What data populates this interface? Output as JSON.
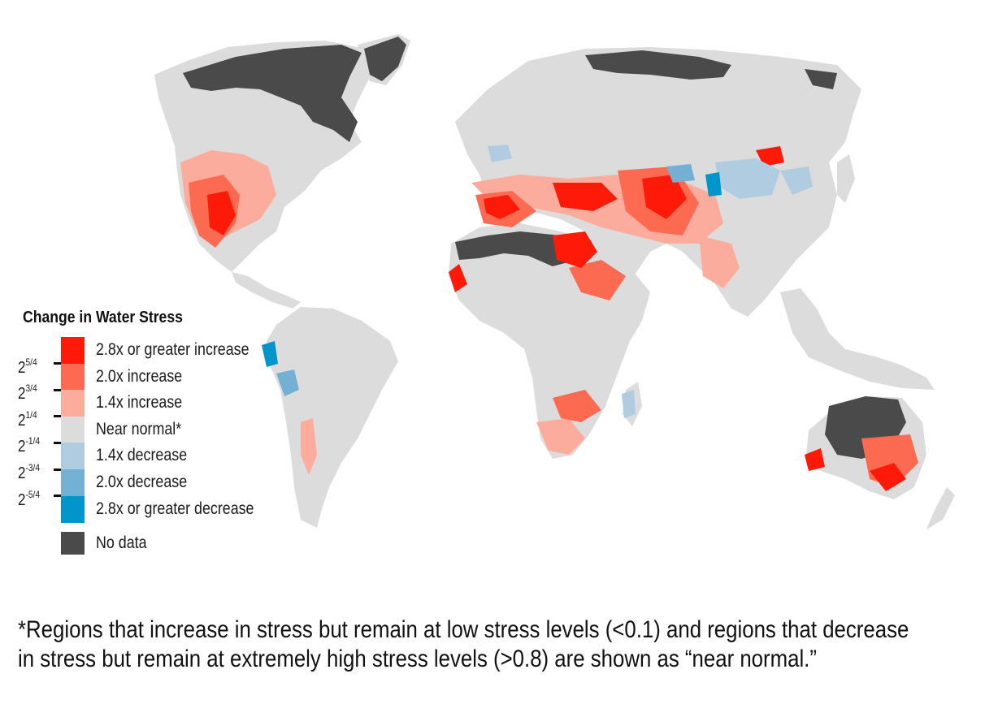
{
  "legend": {
    "title": "Change in Water Stress",
    "items": [
      {
        "label": "2.8x or greater increase",
        "color": "#fe1a09"
      },
      {
        "label": "2.0x increase",
        "color": "#fd6a52"
      },
      {
        "label": "1.4x increase",
        "color": "#fcac9c"
      },
      {
        "label": "Near normal*",
        "color": "#dcdcdc"
      },
      {
        "label": "1.4x decrease",
        "color": "#b0cce1"
      },
      {
        "label": "2.0x decrease",
        "color": "#74afd4"
      },
      {
        "label": "2.8x or greater decrease",
        "color": "#0096cc"
      }
    ],
    "no_data": {
      "label": "No data",
      "color": "#4a4a4a"
    },
    "ticks": [
      {
        "base": "2",
        "exp": "5/4"
      },
      {
        "base": "2",
        "exp": "3/4"
      },
      {
        "base": "2",
        "exp": "1/4"
      },
      {
        "base": "2",
        "exp": "-1/4"
      },
      {
        "base": "2",
        "exp": "-3/4"
      },
      {
        "base": "2",
        "exp": "-5/4"
      }
    ]
  },
  "footnote": {
    "line1": "*Regions that increase in stress but remain at low stress levels (<0.1) and regions that decrease",
    "line2": "in stress but remain at extremely high stress levels (>0.8) are shown as “near normal.”"
  },
  "colors": {
    "land": "#dcdcdc",
    "no_data": "#4a4a4a",
    "strong_increase": "#fe1a09",
    "increase": "#fd6a52",
    "mild_increase": "#fcac9c",
    "mild_decrease": "#b0cce1",
    "decrease": "#74afd4",
    "strong_decrease": "#0096cc"
  }
}
